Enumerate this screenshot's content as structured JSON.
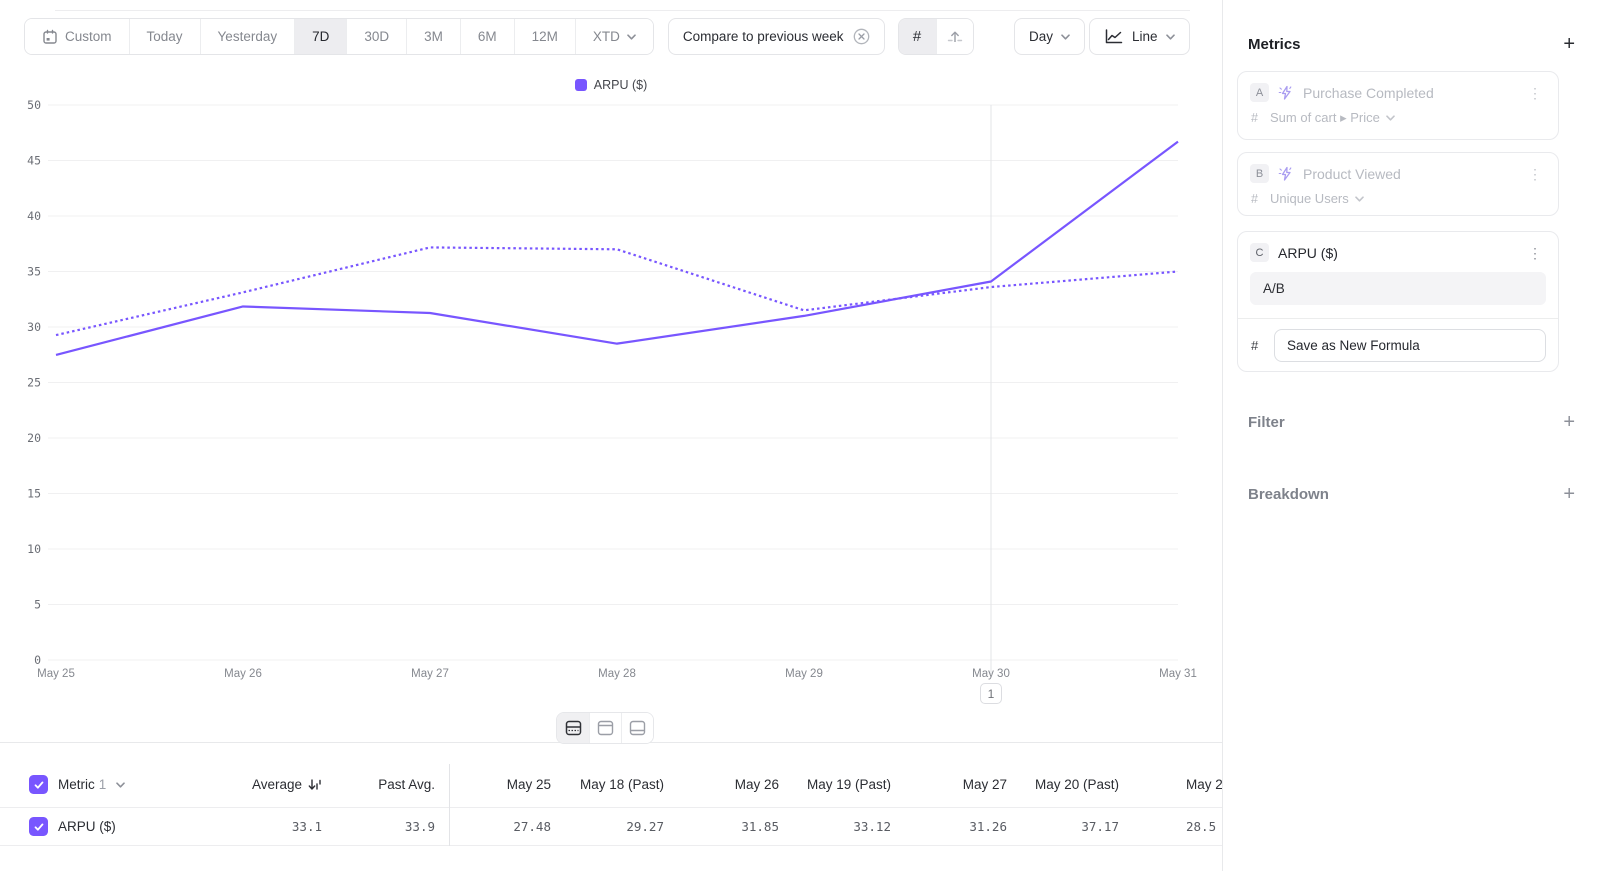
{
  "colors": {
    "accent": "#7856ff",
    "gridline": "#f0f0f1",
    "annotation_line": "#e3e4e7"
  },
  "toolbar": {
    "date_ranges": [
      "Custom",
      "Today",
      "Yesterday",
      "7D",
      "30D",
      "3M",
      "6M",
      "12M",
      "XTD"
    ],
    "selected_range": "7D",
    "compare_chip": "Compare to previous week",
    "granularity": "Day",
    "chart_type": "Line"
  },
  "legend": {
    "label": "ARPU ($)"
  },
  "annotation": {
    "marker": "1",
    "x_label": "May 30"
  },
  "chart_data": {
    "type": "line",
    "title": "ARPU ($)",
    "categories": [
      "May 25",
      "May 26",
      "May 27",
      "May 28",
      "May 29",
      "May 30",
      "May 31"
    ],
    "series": [
      {
        "name": "ARPU ($) current",
        "style": "solid",
        "values": [
          27.48,
          31.85,
          31.26,
          28.5,
          31.0,
          34.1,
          46.7
        ]
      },
      {
        "name": "ARPU ($) previous week",
        "style": "dotted",
        "values": [
          29.27,
          33.12,
          37.17,
          37.0,
          31.5,
          33.6,
          35.0
        ]
      }
    ],
    "ylim": [
      0,
      50
    ],
    "yticks": [
      0,
      5,
      10,
      15,
      20,
      25,
      30,
      35,
      40,
      45,
      50
    ],
    "color": "#7856ff",
    "grid": "horizontal",
    "legend_position": "top-center"
  },
  "sidebar": {
    "metrics_title": "Metrics",
    "metrics": [
      {
        "letter": "A",
        "name": "Purchase Completed",
        "measure": "Sum of cart ▸ Price"
      },
      {
        "letter": "B",
        "name": "Product Viewed",
        "measure": "Unique Users"
      },
      {
        "letter": "C",
        "name": "ARPU ($)",
        "formula": "A/B",
        "save_button": "Save as New Formula"
      }
    ],
    "filter_title": "Filter",
    "breakdown_title": "Breakdown"
  },
  "table": {
    "metric_label": "Metric",
    "metric_count": "1",
    "headers": [
      "Average",
      "Past Avg.",
      "May 25",
      "May 18 (Past)",
      "May 26",
      "May 19 (Past)",
      "May 27",
      "May 20 (Past)",
      "May 2"
    ],
    "row": {
      "name": "ARPU ($)",
      "values": [
        "33.1",
        "33.9",
        "27.48",
        "29.27",
        "31.85",
        "33.12",
        "31.26",
        "37.17",
        "28.5"
      ]
    }
  }
}
